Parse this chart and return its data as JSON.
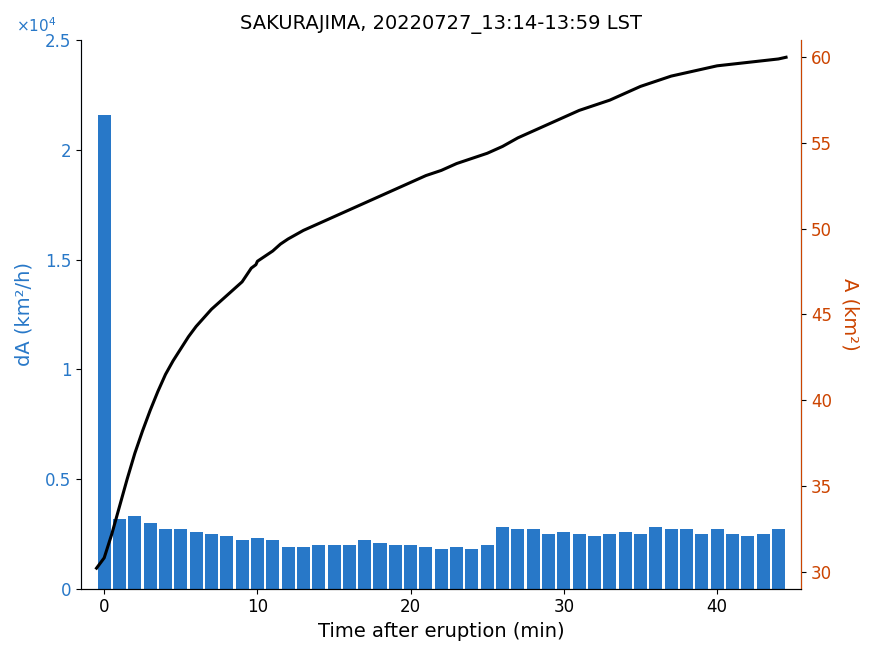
{
  "title": "SAKURAJIMA, 20220727_13:14-13:59 LST",
  "xlabel": "Time after eruption (min)",
  "ylabel_left": "dA (km²/h)",
  "ylabel_right": "A (km²)",
  "bar_color": "#2878c8",
  "line_color": "#000000",
  "left_axis_color": "#2878c8",
  "right_axis_color": "#cc4400",
  "bar_x": [
    0,
    1,
    2,
    3,
    4,
    5,
    6,
    7,
    8,
    9,
    10,
    11,
    12,
    13,
    14,
    15,
    16,
    17,
    18,
    19,
    20,
    21,
    22,
    23,
    24,
    25,
    26,
    27,
    28,
    29,
    30,
    31,
    32,
    33,
    34,
    35,
    36,
    37,
    38,
    39,
    40,
    41,
    42,
    43,
    44
  ],
  "bar_heights": [
    21600,
    3200,
    3300,
    3000,
    2700,
    2700,
    2600,
    2500,
    2400,
    2200,
    2300,
    2200,
    1900,
    1900,
    2000,
    2000,
    2000,
    2200,
    2100,
    2000,
    2000,
    1900,
    1800,
    1900,
    1800,
    2000,
    2800,
    2700,
    2700,
    2500,
    2600,
    2500,
    2400,
    2500,
    2600,
    2500,
    2800,
    2700,
    2700,
    2500,
    2700,
    2500,
    2400,
    2500,
    2700
  ],
  "line_x": [
    -0.5,
    0.0,
    0.5,
    1.0,
    1.5,
    2.0,
    2.5,
    3.0,
    3.5,
    4.0,
    4.5,
    5.0,
    5.5,
    6.0,
    6.5,
    7.0,
    7.5,
    8.0,
    8.5,
    9.0,
    9.3,
    9.6,
    9.9,
    10.0,
    10.5,
    11.0,
    11.5,
    12.0,
    13.0,
    14.0,
    15.0,
    16.0,
    17.0,
    18.0,
    19.0,
    20.0,
    21.0,
    22.0,
    23.0,
    24.0,
    25.0,
    26.0,
    27.0,
    28.0,
    29.0,
    30.0,
    31.0,
    32.0,
    33.0,
    34.0,
    35.0,
    36.0,
    37.0,
    38.0,
    39.0,
    40.0,
    41.0,
    42.0,
    43.0,
    44.0,
    44.5
  ],
  "line_y": [
    30.2,
    30.8,
    32.2,
    33.8,
    35.4,
    36.9,
    38.2,
    39.4,
    40.5,
    41.5,
    42.3,
    43.0,
    43.7,
    44.3,
    44.8,
    45.3,
    45.7,
    46.1,
    46.5,
    46.9,
    47.3,
    47.7,
    47.9,
    48.1,
    48.4,
    48.7,
    49.1,
    49.4,
    49.9,
    50.3,
    50.7,
    51.1,
    51.5,
    51.9,
    52.3,
    52.7,
    53.1,
    53.4,
    53.8,
    54.1,
    54.4,
    54.8,
    55.3,
    55.7,
    56.1,
    56.5,
    56.9,
    57.2,
    57.5,
    57.9,
    58.3,
    58.6,
    58.9,
    59.1,
    59.3,
    59.5,
    59.6,
    59.7,
    59.8,
    59.9,
    60.0
  ],
  "xlim": [
    -1.5,
    45.5
  ],
  "ylim_left": [
    0,
    25000
  ],
  "ylim_right": [
    29,
    61
  ],
  "xticks": [
    0,
    10,
    20,
    30,
    40
  ],
  "yticks_left_vals": [
    0,
    5000,
    10000,
    15000,
    20000,
    25000
  ],
  "yticks_left_labels": [
    "0",
    "0.5",
    "1",
    "1.5",
    "2",
    "2.5"
  ],
  "yticks_right": [
    30,
    35,
    40,
    45,
    50,
    55,
    60
  ],
  "bar_width": 0.85,
  "figsize": [
    8.75,
    6.56
  ],
  "dpi": 100
}
